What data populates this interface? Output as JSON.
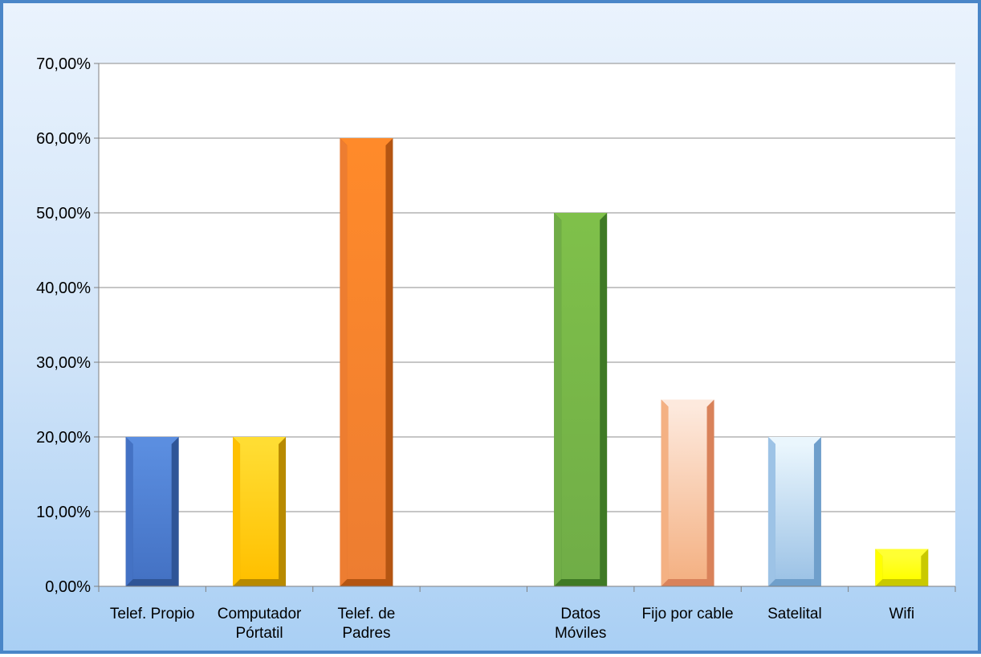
{
  "chart_data": {
    "type": "bar",
    "categories": [
      [
        "Telef. Propio"
      ],
      [
        "Computador",
        "Pórtatil"
      ],
      [
        "Telef. de",
        "Padres"
      ],
      [
        ""
      ],
      [
        "Datos",
        "Móviles"
      ],
      [
        "Fijo por cable"
      ],
      [
        "Satelital"
      ],
      [
        "Wifi"
      ]
    ],
    "values": [
      20,
      20,
      60,
      0,
      50,
      25,
      20,
      5
    ],
    "bar_colors": [
      "#4472c4",
      "#ffc000",
      "#ed7d31",
      null,
      "#70ad47",
      "#f4b183",
      "#9dc3e6",
      "#ffff00"
    ],
    "bar_light": [
      "#5b8ee0",
      "#ffdd33",
      "#ff8a2a",
      null,
      "#7fc04a",
      "#fde9dd",
      "#eaf6fd",
      "#ffff33"
    ],
    "bar_dark": [
      "#2f5597",
      "#b88a00",
      "#b45512",
      null,
      "#3f7a25",
      "#d9825a",
      "#6f9fcb",
      "#c9c900"
    ],
    "ylim": [
      0,
      70
    ],
    "yticks": [
      0,
      10,
      20,
      30,
      40,
      50,
      60,
      70
    ],
    "ytick_labels": [
      "0,00%",
      "10,00%",
      "20,00%",
      "30,00%",
      "40,00%",
      "50,00%",
      "60,00%",
      "70,00%"
    ],
    "grid": true,
    "legend": false
  }
}
